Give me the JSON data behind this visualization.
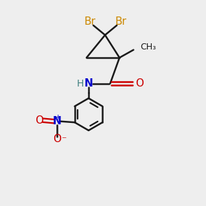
{
  "background_color": "#eeeeee",
  "bond_color": "#1a1a1a",
  "br_color": "#cc8800",
  "n_color": "#0000cc",
  "o_color": "#cc0000",
  "h_color": "#408080",
  "figsize": [
    3.0,
    3.0
  ],
  "dpi": 100,
  "xlim": [
    0,
    10
  ],
  "ylim": [
    0,
    10
  ]
}
